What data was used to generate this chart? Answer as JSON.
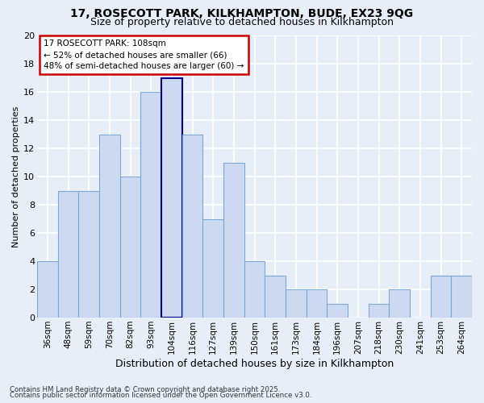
{
  "title1": "17, ROSECOTT PARK, KILKHAMPTON, BUDE, EX23 9QG",
  "title2": "Size of property relative to detached houses in Kilkhampton",
  "xlabel": "Distribution of detached houses by size in Kilkhampton",
  "ylabel": "Number of detached properties",
  "categories": [
    "36sqm",
    "48sqm",
    "59sqm",
    "70sqm",
    "82sqm",
    "93sqm",
    "104sqm",
    "116sqm",
    "127sqm",
    "139sqm",
    "150sqm",
    "161sqm",
    "173sqm",
    "184sqm",
    "196sqm",
    "207sqm",
    "218sqm",
    "230sqm",
    "241sqm",
    "253sqm",
    "264sqm"
  ],
  "values": [
    4,
    9,
    9,
    13,
    10,
    16,
    17,
    13,
    7,
    11,
    4,
    3,
    2,
    2,
    1,
    0,
    1,
    2,
    0,
    3,
    3
  ],
  "bar_color": "#ccd9f0",
  "bar_edge_color": "#7aa8d8",
  "highlight_bar_index": 6,
  "highlight_edge_color": "#00008b",
  "annotation_title": "17 ROSECOTT PARK: 108sqm",
  "annotation_line2": "← 52% of detached houses are smaller (66)",
  "annotation_line3": "48% of semi-detached houses are larger (60) →",
  "annotation_box_color": "#ffffff",
  "annotation_box_edge": "#cc0000",
  "ylim": [
    0,
    20
  ],
  "yticks": [
    0,
    2,
    4,
    6,
    8,
    10,
    12,
    14,
    16,
    18,
    20
  ],
  "footnote1": "Contains HM Land Registry data © Crown copyright and database right 2025.",
  "footnote2": "Contains public sector information licensed under the Open Government Licence v3.0.",
  "bg_color": "#e8eef8",
  "grid_color": "#ffffff",
  "title_fontsize": 10,
  "subtitle_fontsize": 9,
  "ylabel_fontsize": 8,
  "xlabel_fontsize": 9,
  "tick_fontsize": 7.5,
  "annotation_fontsize": 7.5,
  "footnote_fontsize": 6.2
}
